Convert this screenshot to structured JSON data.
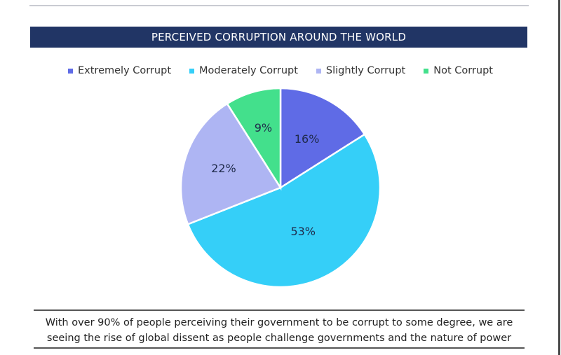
{
  "chart_data": {
    "type": "pie",
    "title": "PERCEIVED CORRUPTION AROUND THE WORLD",
    "legend_position": "top",
    "categories": [
      "Extremely Corrupt",
      "Moderately Corrupt",
      "Slightly Corrupt",
      "Not Corrupt"
    ],
    "values": [
      16,
      53,
      22,
      9
    ],
    "labels": [
      "16%",
      "53%",
      "22%",
      "9%"
    ],
    "colors": [
      "#5f6be6",
      "#35cff8",
      "#aeb5f3",
      "#43e08c"
    ],
    "start_angle_deg": 0,
    "direction": "clockwise"
  },
  "caption": {
    "line1": "With over 90% of people perceiving their government to be corrupt to some degree, we are",
    "line2": "seeing the rise of global dissent as people challenge governments and the nature of power"
  }
}
